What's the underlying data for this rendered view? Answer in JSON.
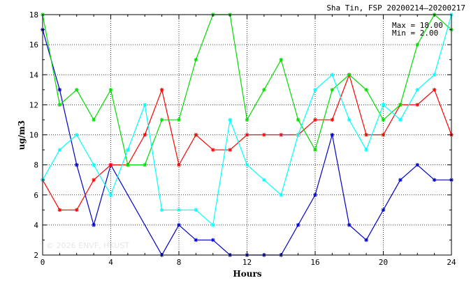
{
  "chart_data": {
    "type": "line",
    "title": "Sha Tin, FSP 20200214–20200217",
    "xlabel": "Hours",
    "ylabel": "ug/m3",
    "xlim": [
      0,
      24
    ],
    "ylim": [
      2,
      18
    ],
    "xticks": [
      0,
      4,
      8,
      12,
      16,
      20,
      24
    ],
    "yticks": [
      2,
      4,
      6,
      8,
      10,
      12,
      14,
      16,
      18
    ],
    "grid": true,
    "stats": {
      "max_label": "Max = 18.00",
      "min_label": "Min =  2.00"
    },
    "watermark": "© 2026 ENVF, HKUST",
    "x": [
      0,
      1,
      2,
      3,
      4,
      5,
      6,
      7,
      8,
      9,
      10,
      11,
      12,
      13,
      14,
      15,
      16,
      17,
      18,
      19,
      20,
      21,
      22,
      23,
      24
    ],
    "series": [
      {
        "color": "#0000cc",
        "values": [
          17,
          13,
          8,
          4,
          8,
          null,
          null,
          2,
          4,
          3,
          3,
          2,
          2,
          2,
          2,
          4,
          6,
          10,
          4,
          3,
          5,
          7,
          8,
          7,
          7
        ]
      },
      {
        "color": "#ff0000",
        "values": [
          7,
          5,
          5,
          7,
          8,
          8,
          10,
          13,
          8,
          10,
          9,
          9,
          10,
          10,
          10,
          10,
          11,
          11,
          14,
          10,
          10,
          12,
          12,
          13,
          10
        ]
      },
      {
        "color": "#00dd00",
        "values": [
          18,
          12,
          13,
          11,
          13,
          8,
          8,
          11,
          11,
          15,
          18,
          18,
          11,
          13,
          15,
          11,
          9,
          13,
          14,
          13,
          11,
          12,
          16,
          18,
          17
        ]
      },
      {
        "color": "#00ffff",
        "values": [
          7,
          9,
          10,
          8,
          6,
          9,
          12,
          5,
          5,
          5,
          4,
          11,
          8,
          7,
          6,
          10,
          13,
          14,
          11,
          9,
          12,
          11,
          13,
          14,
          18
        ]
      }
    ]
  }
}
